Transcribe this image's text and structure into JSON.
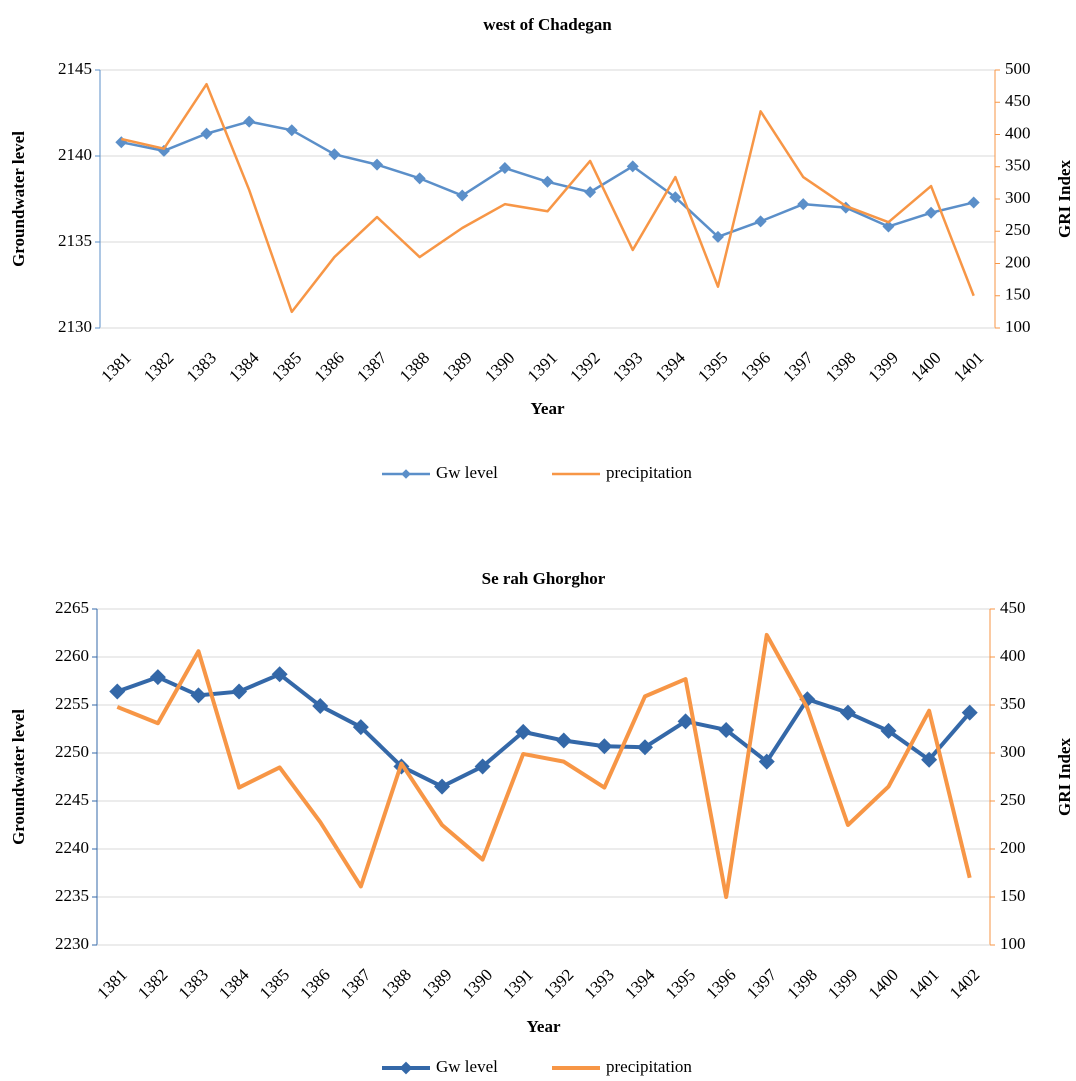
{
  "chart_data": [
    {
      "type": "line",
      "title": "west of Chadegan",
      "x_label": "Year",
      "y_label": "Groundwater level",
      "y2_label": "GRI Index",
      "categories": [
        "1381",
        "1382",
        "1383",
        "1384",
        "1385",
        "1386",
        "1387",
        "1388",
        "1389",
        "1390",
        "1391",
        "1392",
        "1393",
        "1394",
        "1395",
        "1396",
        "1397",
        "1398",
        "1399",
        "1400",
        "1401"
      ],
      "series": [
        {
          "name": "Gw level",
          "color": "#5b8fc9",
          "marker": "diamond",
          "values": [
            2140.8,
            2140.3,
            2141.3,
            2142.0,
            2141.5,
            2140.1,
            2139.5,
            2138.7,
            2137.7,
            2139.3,
            2138.5,
            2137.9,
            2139.4,
            2137.6,
            2135.3,
            2136.2,
            2137.2,
            2137.0,
            2135.9,
            2136.7,
            2137.3
          ]
        },
        {
          "name": "precipitation",
          "color": "#f79646",
          "axis": "y2",
          "values": [
            393,
            378,
            478,
            314,
            125,
            210,
            272,
            210,
            255,
            292,
            281,
            359,
            221,
            334,
            164,
            436,
            334,
            289,
            264,
            320,
            150
          ]
        }
      ],
      "ylim": [
        2130,
        2145
      ],
      "yticks": [
        2130,
        2135,
        2140,
        2145
      ],
      "y2lim": [
        100,
        500
      ],
      "y2ticks": [
        100,
        150,
        200,
        250,
        300,
        350,
        400,
        450,
        500
      ],
      "grid": true,
      "legend": "bottom"
    },
    {
      "type": "line",
      "title": "Se rah Ghorghor",
      "x_label": "Year",
      "y_label": "Groundwater level",
      "y2_label": "GRI Index",
      "categories": [
        "1381",
        "1382",
        "1383",
        "1384",
        "1385",
        "1386",
        "1387",
        "1388",
        "1389",
        "1390",
        "1391",
        "1392",
        "1393",
        "1394",
        "1395",
        "1396",
        "1397",
        "1398",
        "1399",
        "1400",
        "1401",
        "1402"
      ],
      "series": [
        {
          "name": "Gw level",
          "color": "#3468a8",
          "marker": "diamond",
          "values": [
            2256.4,
            2257.9,
            2256.0,
            2256.4,
            2258.2,
            2254.9,
            2252.7,
            2248.6,
            2246.5,
            2248.6,
            2252.2,
            2251.3,
            2250.7,
            2250.6,
            2253.3,
            2252.4,
            2249.1,
            2255.6,
            2254.2,
            2252.3,
            2249.3,
            2254.2
          ]
        },
        {
          "name": "precipitation",
          "color": "#f79646",
          "axis": "y2",
          "values": [
            348,
            331,
            406,
            264,
            285,
            228,
            161,
            289,
            225,
            189,
            299,
            291,
            264,
            359,
            377,
            150,
            423,
            347,
            225,
            265,
            344,
            170
          ]
        }
      ],
      "ylim": [
        2230,
        2265
      ],
      "yticks": [
        2230,
        2235,
        2240,
        2245,
        2250,
        2255,
        2260,
        2265
      ],
      "y2lim": [
        100,
        450
      ],
      "y2ticks": [
        100,
        150,
        200,
        250,
        300,
        350,
        400,
        450
      ],
      "grid": true,
      "legend": "bottom"
    }
  ]
}
